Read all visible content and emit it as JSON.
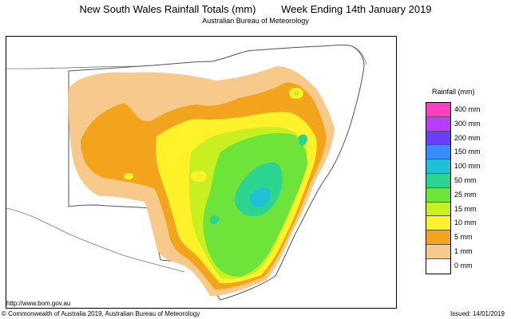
{
  "map": {
    "title_left": "New South Wales Rainfall Totals (mm)",
    "title_right": "Week Ending 14th January 2019",
    "subtitle": "Australian Bureau of Meteorology",
    "url": "http://www.bom.gov.au",
    "copyright": "© Commonwealth of Australia 2019, Australian Bureau of Meteorology",
    "issued": "Issued: 14/01/2019"
  },
  "legend": {
    "title": "Rainfall (mm)",
    "items": [
      {
        "label": "400 mm",
        "color": "#ff3fbf"
      },
      {
        "label": "300 mm",
        "color": "#b93cff"
      },
      {
        "label": "200 mm",
        "color": "#6a3dff"
      },
      {
        "label": "150 mm",
        "color": "#3a8cff"
      },
      {
        "label": "100 mm",
        "color": "#21c0d9"
      },
      {
        "label": "50 mm",
        "color": "#2bd58f"
      },
      {
        "label": "25 mm",
        "color": "#6ee33a"
      },
      {
        "label": "15 mm",
        "color": "#c8f020"
      },
      {
        "label": "10 mm",
        "color": "#fff22a"
      },
      {
        "label": "5 mm",
        "color": "#f2a51c"
      },
      {
        "label": "1 mm",
        "color": "#f7c98a"
      },
      {
        "label": "0 mm",
        "color": "#ffffff"
      }
    ]
  }
}
